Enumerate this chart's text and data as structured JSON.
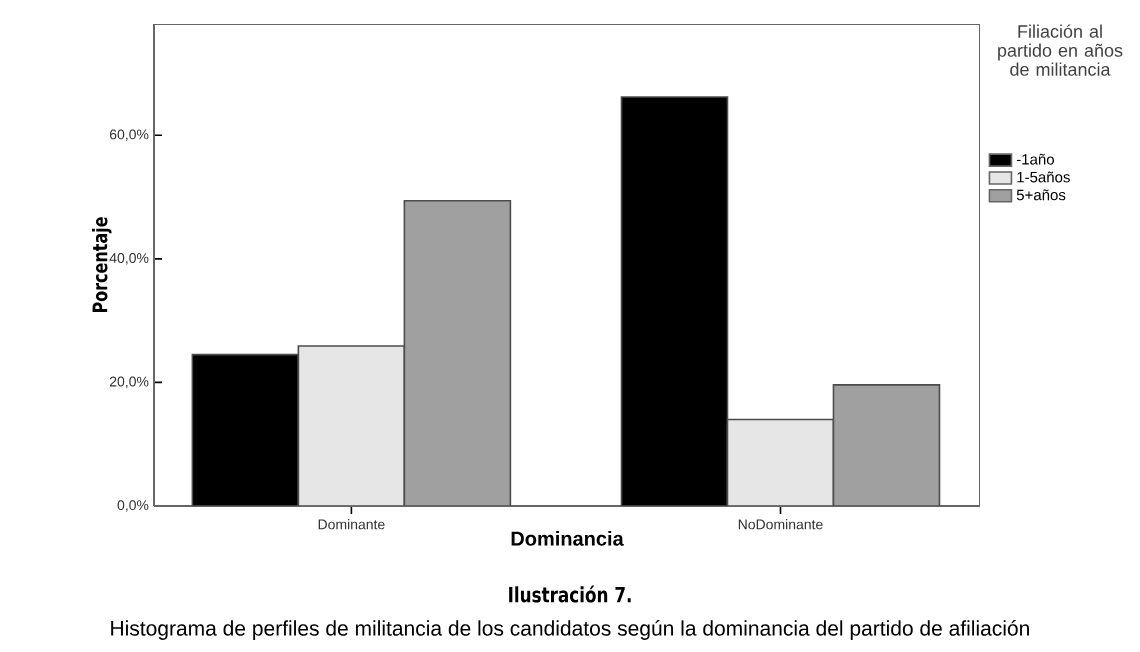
{
  "chart_data": {
    "type": "bar",
    "title": "Ilustración 7.",
    "subtitle": "Histograma de perfiles de militancia de los candidatos según la dominancia del partido de afiliación",
    "xlabel": "Dominancia",
    "ylabel": "Porcentaje",
    "legend_title": "Filiación al partido en años de militancia",
    "categories": [
      "Dominante",
      "NoDominante"
    ],
    "series": [
      {
        "name": "-1año",
        "color": "#000000",
        "values": [
          24.5,
          66.2
        ]
      },
      {
        "name": "1-5años",
        "color": "#e6e6e6",
        "values": [
          25.9,
          14.0
        ]
      },
      {
        "name": "5+años",
        "color": "#a0a0a0",
        "values": [
          49.4,
          19.6
        ]
      }
    ],
    "ylim": [
      0,
      78
    ],
    "yticks": [
      {
        "value": 0,
        "label": "0,0%"
      },
      {
        "value": 20,
        "label": "20,0%"
      },
      {
        "value": 40,
        "label": "40,0%"
      },
      {
        "value": 60,
        "label": "60,0%"
      }
    ],
    "legend": "top right",
    "grid": false
  }
}
